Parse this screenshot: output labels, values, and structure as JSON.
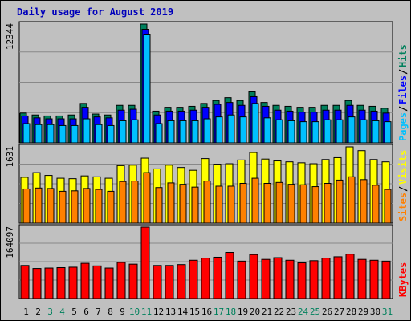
{
  "title": "Daily usage for August 2019",
  "colors": {
    "background": "#C0C0C0",
    "title": "#0000BB",
    "hits": "#00805C",
    "files": "#0000FF",
    "pages": "#00C0FF",
    "visits": "#FFFF00",
    "sites": "#FF8000",
    "kbytes": "#FF0000",
    "weekend_label": "#00805C",
    "weekday_label": "#000000"
  },
  "chart_data": [
    {
      "type": "bar",
      "name": "hits-files-pages",
      "ymax_label": "12344",
      "ylim": [
        0,
        12344
      ],
      "legend": [
        "Pages",
        "Files",
        "Hits"
      ],
      "categories": [
        "1",
        "2",
        "3",
        "4",
        "5",
        "6",
        "7",
        "8",
        "9",
        "10",
        "11",
        "12",
        "13",
        "14",
        "15",
        "16",
        "17",
        "18",
        "19",
        "20",
        "21",
        "22",
        "23",
        "24",
        "25",
        "26",
        "27",
        "28",
        "29",
        "30",
        "31"
      ],
      "series": [
        {
          "name": "Hits",
          "values": [
            3100,
            2900,
            2800,
            2800,
            2900,
            4100,
            3000,
            2900,
            3900,
            3900,
            12344,
            3300,
            3700,
            3700,
            3800,
            4100,
            4400,
            4700,
            4400,
            5300,
            4200,
            3900,
            3800,
            3700,
            3700,
            3900,
            3900,
            4400,
            3900,
            3800,
            3600
          ]
        },
        {
          "name": "Files",
          "values": [
            2800,
            2600,
            2500,
            2500,
            2500,
            3700,
            2700,
            2600,
            3400,
            3500,
            11800,
            2900,
            3300,
            3300,
            3400,
            3700,
            4000,
            4200,
            3900,
            4800,
            3800,
            3400,
            3300,
            3200,
            3200,
            3400,
            3400,
            3900,
            3400,
            3300,
            3100
          ]
        },
        {
          "name": "Pages",
          "values": [
            2000,
            1900,
            1900,
            1800,
            1800,
            2500,
            1900,
            1800,
            2300,
            2400,
            11300,
            2000,
            2300,
            2300,
            2300,
            2500,
            2700,
            2900,
            2700,
            4100,
            2600,
            2400,
            2300,
            2200,
            2200,
            2400,
            2400,
            2700,
            2400,
            2300,
            2200
          ]
        }
      ]
    },
    {
      "type": "bar",
      "name": "visits-sites",
      "ymax_label": "1631",
      "ylim": [
        0,
        1631
      ],
      "legend": [
        "Sites",
        "Visits"
      ],
      "categories": [
        "1",
        "2",
        "3",
        "4",
        "5",
        "6",
        "7",
        "8",
        "9",
        "10",
        "11",
        "12",
        "13",
        "14",
        "15",
        "16",
        "17",
        "18",
        "19",
        "20",
        "21",
        "22",
        "23",
        "24",
        "25",
        "26",
        "27",
        "28",
        "29",
        "30",
        "31"
      ],
      "series": [
        {
          "name": "Visits",
          "values": [
            980,
            1080,
            1020,
            960,
            950,
            1010,
            990,
            960,
            1230,
            1240,
            1390,
            1160,
            1240,
            1190,
            1130,
            1380,
            1260,
            1270,
            1350,
            1510,
            1370,
            1330,
            1310,
            1290,
            1270,
            1360,
            1400,
            1631,
            1550,
            1360,
            1310
          ]
        },
        {
          "name": "Sites",
          "values": [
            730,
            750,
            740,
            680,
            690,
            740,
            720,
            680,
            890,
            900,
            1080,
            760,
            860,
            830,
            770,
            900,
            790,
            790,
            850,
            960,
            850,
            870,
            830,
            820,
            780,
            850,
            920,
            990,
            930,
            810,
            720
          ]
        }
      ]
    },
    {
      "type": "bar",
      "name": "kbytes",
      "ymax_label": "164097",
      "ylim": [
        0,
        164097
      ],
      "legend": [
        "KBytes"
      ],
      "categories": [
        "1",
        "2",
        "3",
        "4",
        "5",
        "6",
        "7",
        "8",
        "9",
        "10",
        "11",
        "12",
        "13",
        "14",
        "15",
        "16",
        "17",
        "18",
        "19",
        "20",
        "21",
        "22",
        "23",
        "24",
        "25",
        "26",
        "27",
        "28",
        "29",
        "30",
        "31"
      ],
      "series": [
        {
          "name": "KBytes",
          "values": [
            76000,
            69000,
            70000,
            71000,
            72000,
            81000,
            75000,
            70000,
            83000,
            79000,
            164097,
            76000,
            76000,
            78000,
            88000,
            93000,
            95000,
            106000,
            86000,
            101000,
            90000,
            94000,
            88000,
            82000,
            87000,
            93000,
            96000,
            102000,
            90000,
            88000,
            86000
          ]
        }
      ]
    }
  ],
  "x_axis": {
    "labels": [
      "1",
      "2",
      "3",
      "4",
      "5",
      "6",
      "7",
      "8",
      "9",
      "10",
      "11",
      "12",
      "13",
      "14",
      "15",
      "16",
      "17",
      "18",
      "19",
      "20",
      "21",
      "22",
      "23",
      "24",
      "25",
      "26",
      "27",
      "28",
      "29",
      "30",
      "31"
    ],
    "weekend_days": [
      3,
      4,
      10,
      11,
      17,
      18,
      24,
      25,
      31
    ]
  }
}
